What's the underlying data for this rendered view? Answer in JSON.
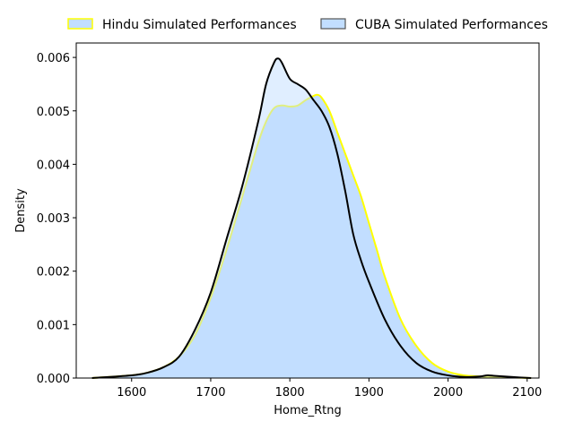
{
  "chart_data": {
    "type": "area",
    "title": "",
    "xlabel": "Home_Rtng",
    "ylabel": "Density",
    "xlim": [
      1530,
      2115
    ],
    "ylim": [
      0,
      0.00627
    ],
    "xticks": [
      1600,
      1700,
      1800,
      1900,
      2000,
      2100
    ],
    "yticks": [
      0.0,
      0.001,
      0.002,
      0.003,
      0.004,
      0.005,
      0.006
    ],
    "xtick_labels": [
      "1600",
      "1700",
      "1800",
      "1900",
      "2000",
      "2100"
    ],
    "ytick_labels": [
      "0.000",
      "0.001",
      "0.002",
      "0.003",
      "0.004",
      "0.005",
      "0.006"
    ],
    "grid": false,
    "legend_position": "top",
    "series": [
      {
        "name": "Hindu Simulated Performances",
        "line_color": "#ffff00",
        "fill_color": "#c2deff",
        "fill_opacity": 1.0,
        "x": [
          1550,
          1600,
          1620,
          1640,
          1660,
          1680,
          1700,
          1720,
          1740,
          1760,
          1770,
          1780,
          1790,
          1800,
          1810,
          1820,
          1830,
          1835,
          1840,
          1850,
          1860,
          1870,
          1880,
          1890,
          1900,
          1910,
          1920,
          1940,
          1960,
          1980,
          2000,
          2020,
          2040,
          2060,
          2080,
          2105
        ],
        "y": [
          0.0,
          5e-05,
          0.0001,
          0.0002,
          0.0004,
          0.0008,
          0.0015,
          0.0024,
          0.0034,
          0.0044,
          0.0048,
          0.00505,
          0.0051,
          0.00508,
          0.0051,
          0.0052,
          0.00528,
          0.0053,
          0.00525,
          0.005,
          0.0046,
          0.0042,
          0.0038,
          0.0034,
          0.0029,
          0.0024,
          0.0019,
          0.0011,
          0.0006,
          0.00028,
          0.00012,
          5e-05,
          3e-05,
          2e-05,
          1e-05,
          0.0
        ]
      },
      {
        "name": "CUBA Simulated Performances",
        "line_color": "#000000",
        "fill_color": "#c2deff",
        "fill_opacity": 0.5,
        "x": [
          1550,
          1600,
          1620,
          1640,
          1660,
          1680,
          1700,
          1720,
          1740,
          1760,
          1770,
          1780,
          1785,
          1790,
          1800,
          1810,
          1820,
          1830,
          1840,
          1850,
          1860,
          1870,
          1880,
          1890,
          1900,
          1920,
          1940,
          1960,
          1980,
          2000,
          2020,
          2040,
          2050,
          2060,
          2080,
          2105
        ],
        "y": [
          0.0,
          5e-05,
          0.0001,
          0.0002,
          0.0004,
          0.0009,
          0.0016,
          0.0026,
          0.0036,
          0.0048,
          0.0055,
          0.0059,
          0.00598,
          0.0059,
          0.0056,
          0.0055,
          0.0054,
          0.0052,
          0.005,
          0.0047,
          0.0042,
          0.0035,
          0.0027,
          0.0022,
          0.0018,
          0.0011,
          0.0006,
          0.00028,
          0.00012,
          5e-05,
          2e-05,
          3e-05,
          5e-05,
          4e-05,
          2e-05,
          0.0
        ]
      }
    ]
  }
}
